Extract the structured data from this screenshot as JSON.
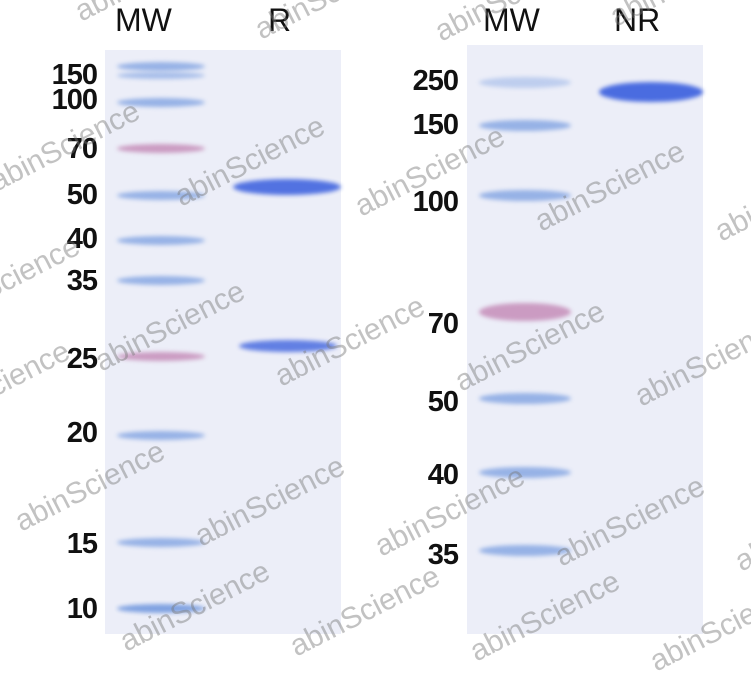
{
  "left_panel": {
    "lane_headers": [
      "MW",
      "R"
    ],
    "marker_labels": [
      "150",
      "100",
      "70",
      "50",
      "40",
      "35",
      "25",
      "20",
      "15",
      "10"
    ]
  },
  "right_panel": {
    "lane_headers": [
      "MW",
      "NR"
    ],
    "marker_labels": [
      "250",
      "150",
      "100",
      "70",
      "50",
      "40",
      "35"
    ]
  },
  "watermark": "abinScience",
  "colors": {
    "gel_background": "#eceef8",
    "band_blue": "#4a6ce0",
    "band_pink": "#c080b0",
    "marker_blue": "#7a9ee0"
  }
}
